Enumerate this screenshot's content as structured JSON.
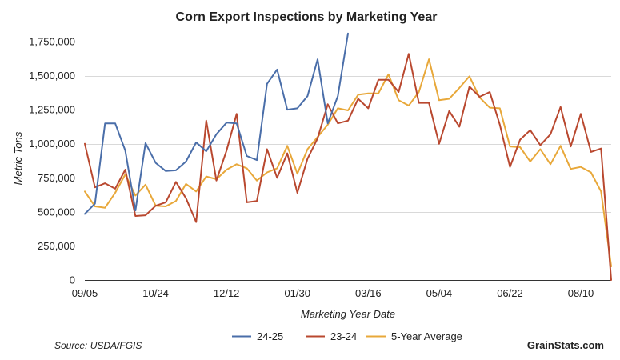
{
  "chart_data": {
    "type": "line",
    "title": "Corn Export Inspections by Marketing Year",
    "xlabel": "Marketing Year Date",
    "ylabel": "Metric Tons",
    "ylim": [
      0,
      1750000
    ],
    "yticks": [
      0,
      250000,
      500000,
      750000,
      1000000,
      1250000,
      1500000,
      1750000
    ],
    "ytick_labels": [
      "0",
      "250,000",
      "500,000",
      "750,000",
      "1,000,000",
      "1,250,000",
      "1,500,000",
      "1,750,000"
    ],
    "xlim": [
      0,
      52
    ],
    "xticks": [
      {
        "week": 0,
        "label": "09/05"
      },
      {
        "week": 7,
        "label": "10/24"
      },
      {
        "week": 14,
        "label": "12/12"
      },
      {
        "week": 21,
        "label": "01/30"
      },
      {
        "week": 28,
        "label": "03/16"
      },
      {
        "week": 35,
        "label": "05/04"
      },
      {
        "week": 42,
        "label": "06/22"
      },
      {
        "week": 49,
        "label": "08/10"
      }
    ],
    "grid": true,
    "legend_position": "bottom",
    "series": [
      {
        "name": "24-25",
        "color": "#4a6ea9",
        "values": [
          485000,
          560000,
          1150000,
          1150000,
          950000,
          510000,
          1005000,
          860000,
          800000,
          805000,
          870000,
          1010000,
          945000,
          1070000,
          1155000,
          1150000,
          910000,
          880000,
          1440000,
          1545000,
          1250000,
          1260000,
          1350000,
          1620000,
          1150000,
          1350000,
          1810000
        ]
      },
      {
        "name": "23-24",
        "color": "#b9482f",
        "values": [
          1000000,
          680000,
          710000,
          670000,
          810000,
          470000,
          475000,
          545000,
          570000,
          720000,
          600000,
          425000,
          1170000,
          730000,
          950000,
          1220000,
          570000,
          580000,
          960000,
          750000,
          930000,
          640000,
          890000,
          1040000,
          1290000,
          1150000,
          1170000,
          1330000,
          1260000,
          1470000,
          1470000,
          1380000,
          1660000,
          1300000,
          1300000,
          1000000,
          1240000,
          1125000,
          1420000,
          1345000,
          1380000,
          1140000,
          830000,
          1030000,
          1100000,
          990000,
          1070000,
          1270000,
          980000,
          1220000,
          940000,
          965000,
          0
        ]
      },
      {
        "name": "5-Year Average",
        "color": "#e8a83a",
        "values": [
          650000,
          540000,
          530000,
          640000,
          775000,
          620000,
          700000,
          545000,
          540000,
          580000,
          705000,
          650000,
          760000,
          740000,
          810000,
          850000,
          820000,
          730000,
          790000,
          820000,
          985000,
          780000,
          960000,
          1050000,
          1140000,
          1260000,
          1245000,
          1360000,
          1370000,
          1370000,
          1510000,
          1320000,
          1280000,
          1380000,
          1620000,
          1320000,
          1330000,
          1410000,
          1495000,
          1340000,
          1265000,
          1260000,
          980000,
          975000,
          870000,
          960000,
          850000,
          985000,
          815000,
          830000,
          790000,
          650000,
          100000
        ]
      }
    ]
  },
  "footer": {
    "source": "Source: USDA/FGIS",
    "brand": "GrainStats.com"
  }
}
